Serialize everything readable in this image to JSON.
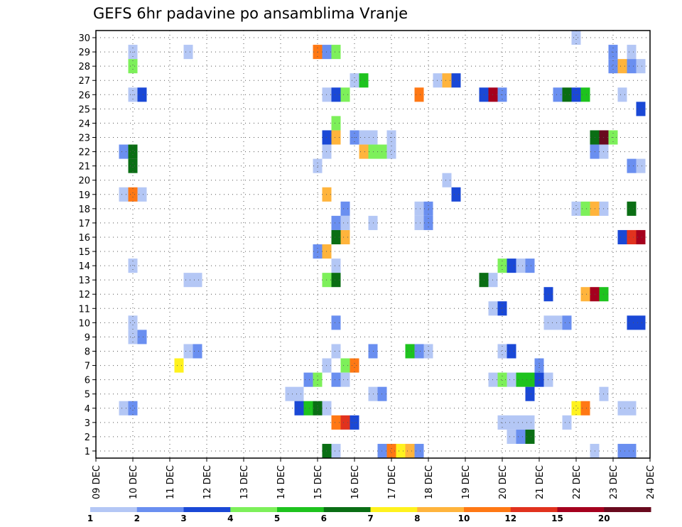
{
  "chart_data": {
    "type": "heatmap",
    "title": "GEFS 6hr padavine po ansamblima Vranje",
    "y_ticks": [
      "1",
      "2",
      "3",
      "4",
      "5",
      "6",
      "7",
      "8",
      "9",
      "10",
      "11",
      "12",
      "13",
      "14",
      "15",
      "16",
      "17",
      "18",
      "19",
      "20",
      "21",
      "22",
      "23",
      "24",
      "25",
      "26",
      "27",
      "28",
      "29",
      "30"
    ],
    "x_ticks": [
      "09 DEC",
      "10 DEC",
      "11 DEC",
      "12 DEC",
      "13 DEC",
      "14 DEC",
      "15 DEC",
      "16 DEC",
      "17 DEC",
      "18 DEC",
      "19 DEC",
      "20 DEC",
      "21 DEC",
      "22 DEC",
      "23 DEC",
      "24 DEC"
    ],
    "x_range_days": [
      0,
      15
    ],
    "y_range": [
      0.5,
      30.5
    ],
    "colorbar": {
      "labels": [
        "1",
        "2",
        "3",
        "4",
        "5",
        "6",
        "7",
        "8",
        "10",
        "12",
        "15",
        "20"
      ],
      "colors": [
        "#b4c7f5",
        "#6a8ff0",
        "#1a48d6",
        "#7df05a",
        "#1ec31e",
        "#0a6e14",
        "#fff21e",
        "#ffb43c",
        "#ff7814",
        "#e1321e",
        "#a5001e",
        "#690a1e"
      ]
    },
    "cells_legend": "each cell = [day_offset_from_09_DEC, ensemble_member, color_class_index]",
    "cells": [
      [
        1.0,
        29,
        0
      ],
      [
        1.0,
        28,
        3
      ],
      [
        1.0,
        26,
        0
      ],
      [
        1.25,
        26,
        2
      ],
      [
        0.75,
        22,
        1
      ],
      [
        1.0,
        22,
        5
      ],
      [
        1.0,
        21,
        5
      ],
      [
        0.75,
        19,
        0
      ],
      [
        1.0,
        19,
        8
      ],
      [
        1.25,
        19,
        0
      ],
      [
        1.0,
        14,
        0
      ],
      [
        1.0,
        10,
        0
      ],
      [
        1.0,
        9,
        0
      ],
      [
        1.25,
        9,
        1
      ],
      [
        0.75,
        4,
        0
      ],
      [
        1.0,
        4,
        1
      ],
      [
        2.5,
        29,
        0
      ],
      [
        2.25,
        7,
        6
      ],
      [
        2.5,
        13,
        0
      ],
      [
        2.75,
        13,
        0
      ],
      [
        2.5,
        8,
        0
      ],
      [
        2.75,
        8,
        1
      ],
      [
        5.25,
        5,
        0
      ],
      [
        5.5,
        5,
        0
      ],
      [
        5.5,
        4,
        2
      ],
      [
        5.75,
        4,
        4
      ],
      [
        6.0,
        4,
        5
      ],
      [
        6.25,
        4,
        0
      ],
      [
        5.75,
        6,
        1
      ],
      [
        6.0,
        6,
        3
      ],
      [
        6.0,
        29,
        8
      ],
      [
        6.25,
        29,
        1
      ],
      [
        6.5,
        29,
        3
      ],
      [
        6.0,
        21,
        0
      ],
      [
        6.0,
        15,
        1
      ],
      [
        6.25,
        15,
        7
      ],
      [
        6.25,
        26,
        0
      ],
      [
        6.5,
        26,
        2
      ],
      [
        6.75,
        26,
        3
      ],
      [
        6.25,
        23,
        2
      ],
      [
        6.5,
        23,
        7
      ],
      [
        6.5,
        24,
        3
      ],
      [
        6.25,
        22,
        0
      ],
      [
        6.25,
        19,
        7
      ],
      [
        6.5,
        17,
        1
      ],
      [
        6.5,
        16,
        5
      ],
      [
        6.75,
        16,
        7
      ],
      [
        6.75,
        18,
        1
      ],
      [
        6.75,
        17,
        0
      ],
      [
        6.5,
        14,
        0
      ],
      [
        6.25,
        13,
        3
      ],
      [
        6.5,
        13,
        5
      ],
      [
        6.25,
        7,
        0
      ],
      [
        6.75,
        7,
        3
      ],
      [
        7.0,
        7,
        8
      ],
      [
        6.5,
        6,
        1
      ],
      [
        6.75,
        6,
        0
      ],
      [
        6.5,
        8,
        0
      ],
      [
        6.5,
        10,
        1
      ],
      [
        6.25,
        1,
        5
      ],
      [
        6.5,
        1,
        0
      ],
      [
        6.5,
        3,
        8
      ],
      [
        6.75,
        3,
        9
      ],
      [
        7.0,
        3,
        2
      ],
      [
        7.0,
        27,
        0
      ],
      [
        7.25,
        27,
        4
      ],
      [
        7.0,
        23,
        1
      ],
      [
        7.25,
        23,
        0
      ],
      [
        7.5,
        23,
        0
      ],
      [
        7.25,
        22,
        7
      ],
      [
        7.5,
        22,
        3
      ],
      [
        7.75,
        22,
        3
      ],
      [
        8.0,
        22,
        0
      ],
      [
        8.0,
        23,
        0
      ],
      [
        7.5,
        17,
        0
      ],
      [
        7.5,
        8,
        1
      ],
      [
        7.5,
        5,
        0
      ],
      [
        7.75,
        5,
        1
      ],
      [
        7.75,
        1,
        1
      ],
      [
        8.0,
        1,
        8
      ],
      [
        8.25,
        1,
        6
      ],
      [
        8.5,
        1,
        7
      ],
      [
        8.75,
        1,
        1
      ],
      [
        8.75,
        26,
        8
      ],
      [
        8.5,
        8,
        4
      ],
      [
        8.75,
        8,
        1
      ],
      [
        9.0,
        8,
        0
      ],
      [
        8.75,
        18,
        0
      ],
      [
        9.0,
        18,
        1
      ],
      [
        8.75,
        17,
        0
      ],
      [
        9.0,
        17,
        1
      ],
      [
        9.25,
        27,
        0
      ],
      [
        9.5,
        27,
        7
      ],
      [
        9.75,
        27,
        2
      ],
      [
        9.5,
        20,
        0
      ],
      [
        9.75,
        19,
        2
      ],
      [
        10.5,
        26,
        2
      ],
      [
        10.75,
        26,
        10
      ],
      [
        11.0,
        26,
        1
      ],
      [
        10.5,
        13,
        5
      ],
      [
        10.75,
        13,
        0
      ],
      [
        10.75,
        11,
        0
      ],
      [
        11.0,
        11,
        2
      ],
      [
        11.0,
        14,
        3
      ],
      [
        11.25,
        14,
        2
      ],
      [
        11.5,
        14,
        0
      ],
      [
        11.75,
        14,
        1
      ],
      [
        10.75,
        6,
        0
      ],
      [
        11.0,
        6,
        3
      ],
      [
        11.25,
        6,
        0
      ],
      [
        11.5,
        6,
        4
      ],
      [
        11.75,
        6,
        4
      ],
      [
        11.75,
        5,
        2
      ],
      [
        12.0,
        6,
        2
      ],
      [
        12.25,
        6,
        0
      ],
      [
        12.0,
        7,
        1
      ],
      [
        11.0,
        8,
        0
      ],
      [
        11.25,
        8,
        2
      ],
      [
        11.0,
        3,
        0
      ],
      [
        11.25,
        3,
        0
      ],
      [
        11.5,
        3,
        0
      ],
      [
        11.75,
        3,
        0
      ],
      [
        11.25,
        2,
        0
      ],
      [
        11.5,
        2,
        1
      ],
      [
        11.75,
        2,
        5
      ],
      [
        12.25,
        12,
        2
      ],
      [
        12.25,
        10,
        0
      ],
      [
        12.5,
        10,
        0
      ],
      [
        12.75,
        10,
        1
      ],
      [
        12.5,
        26,
        1
      ],
      [
        12.75,
        26,
        5
      ],
      [
        13.0,
        26,
        2
      ],
      [
        13.25,
        26,
        4
      ],
      [
        13.0,
        30,
        0
      ],
      [
        13.0,
        18,
        0
      ],
      [
        13.25,
        18,
        3
      ],
      [
        13.5,
        18,
        7
      ],
      [
        13.75,
        18,
        0
      ],
      [
        13.0,
        4,
        6
      ],
      [
        13.25,
        4,
        8
      ],
      [
        12.75,
        3,
        0
      ],
      [
        13.5,
        23,
        5
      ],
      [
        13.75,
        23,
        11
      ],
      [
        14.0,
        23,
        3
      ],
      [
        13.5,
        22,
        1
      ],
      [
        13.75,
        22,
        0
      ],
      [
        13.25,
        12,
        7
      ],
      [
        13.5,
        12,
        10
      ],
      [
        13.75,
        12,
        4
      ],
      [
        13.75,
        5,
        0
      ],
      [
        13.5,
        1,
        0
      ],
      [
        14.25,
        4,
        0
      ],
      [
        14.5,
        4,
        0
      ],
      [
        14.0,
        29,
        1
      ],
      [
        14.5,
        29,
        0
      ],
      [
        14.0,
        28,
        1
      ],
      [
        14.25,
        28,
        7
      ],
      [
        14.5,
        28,
        1
      ],
      [
        14.75,
        28,
        0
      ],
      [
        14.25,
        26,
        0
      ],
      [
        14.75,
        25,
        2
      ],
      [
        14.5,
        21,
        1
      ],
      [
        14.75,
        21,
        0
      ],
      [
        14.5,
        18,
        5
      ],
      [
        14.25,
        16,
        2
      ],
      [
        14.5,
        16,
        9
      ],
      [
        14.75,
        16,
        10
      ],
      [
        14.75,
        10,
        2
      ],
      [
        14.5,
        10,
        2
      ],
      [
        14.25,
        1,
        1
      ],
      [
        14.5,
        1,
        1
      ]
    ]
  }
}
